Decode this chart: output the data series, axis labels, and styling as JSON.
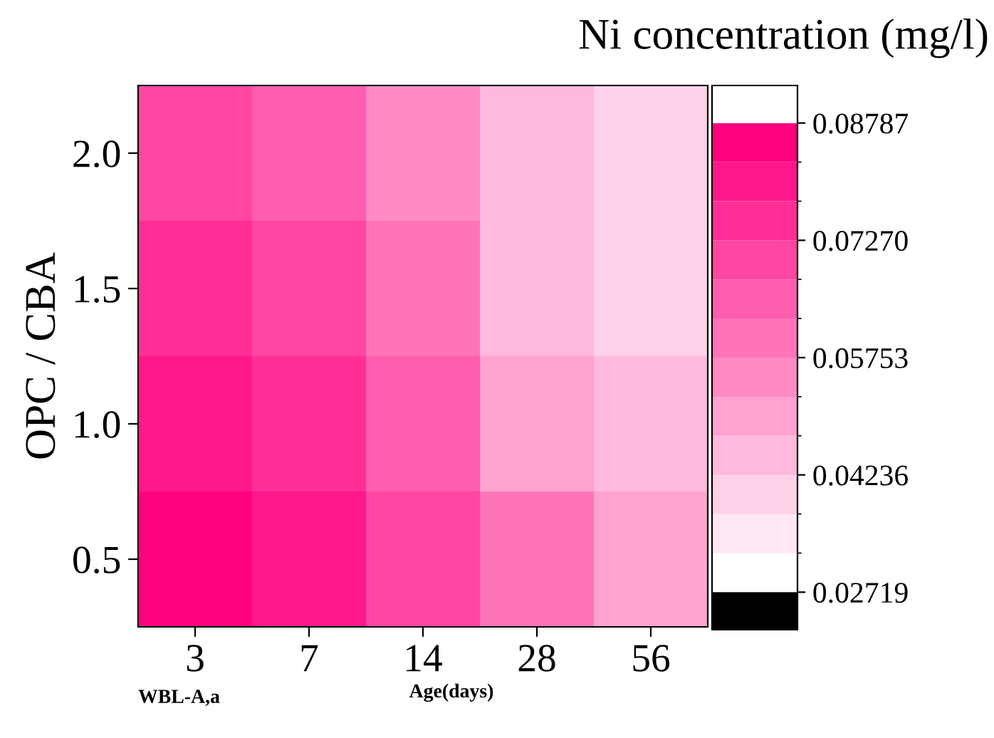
{
  "chart_data": {
    "type": "heatmap",
    "title": "Ni concentration (mg/l)",
    "xlabel": "Age(days)",
    "ylabel": "OPC / CBA",
    "annotations": [
      "WBL-A,a"
    ],
    "categories": [
      "3",
      "7",
      "14",
      "28",
      "56"
    ],
    "y_categories": [
      "2.0",
      "1.5",
      "1.0",
      "0.5"
    ],
    "cells": [
      [
        0.07,
        0.064,
        0.057,
        0.046,
        0.039
      ],
      [
        0.075,
        0.068,
        0.058,
        0.045,
        0.041
      ],
      [
        0.082,
        0.075,
        0.066,
        0.052,
        0.045
      ],
      [
        0.087,
        0.08,
        0.071,
        0.06,
        0.05
      ]
    ],
    "colors": [
      "#ffffff",
      "#ff007f"
    ],
    "clim": [
      0.02719,
      0.08787
    ],
    "cticks": [
      {
        "value": 0.02719,
        "label": "0.02719"
      },
      {
        "value": 0.04236,
        "label": "0.04236"
      },
      {
        "value": 0.05753,
        "label": "0.05753"
      },
      {
        "value": 0.0727,
        "label": "0.07270"
      },
      {
        "value": 0.08787,
        "label": "0.08787"
      }
    ]
  }
}
